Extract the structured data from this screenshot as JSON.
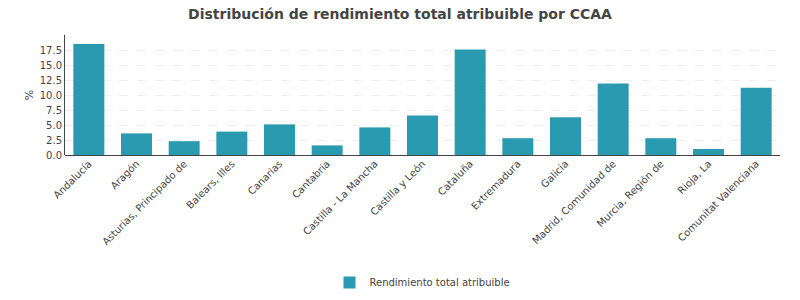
{
  "chart_data": {
    "type": "bar",
    "title": "Distribución de rendimiento total atribuible por CCAA",
    "ylabel": "%",
    "categories": [
      "Andalucía",
      "Aragón",
      "Asturias, Principado de",
      "Balears, Illes",
      "Canarias",
      "Cantabria",
      "Castilla - La Mancha",
      "Castilla y León",
      "Cataluña",
      "Extremadura",
      "Galicia",
      "Madrid, Comunidad de",
      "Murcia, Región de",
      "Rioja, La",
      "Comunitat Valenciana"
    ],
    "series": [
      {
        "name": "Rendimiento total atribuible",
        "color": "#2a9ab0",
        "values": [
          18.5,
          3.6,
          2.3,
          3.9,
          5.1,
          1.6,
          4.6,
          6.6,
          17.6,
          2.8,
          6.3,
          11.9,
          2.8,
          1.0,
          11.2
        ]
      }
    ],
    "ylim": [
      0,
      20
    ],
    "yticks": [
      {
        "value": 0,
        "label": "0.0"
      },
      2.5,
      {
        "value": 5,
        "label": "5.0"
      },
      7.5,
      {
        "value": 10,
        "label": "10.0"
      },
      12.5,
      {
        "value": 15,
        "label": "15.0"
      },
      17.5
    ],
    "grid": true,
    "legend": "bottom"
  }
}
